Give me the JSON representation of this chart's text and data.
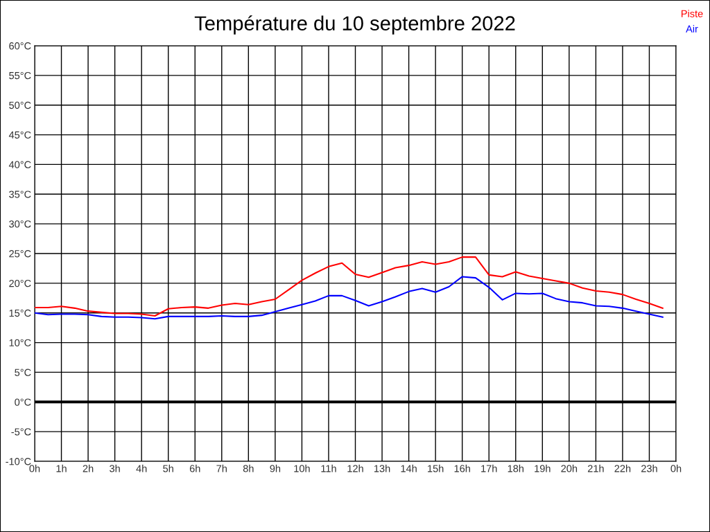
{
  "chart_data": {
    "type": "line",
    "title": "Température du 10 septembre 2022",
    "x": [
      "2022-09-10T00:00",
      "2022-09-10T00:30",
      "2022-09-10T01:00",
      "2022-09-10T01:30",
      "2022-09-10T02:00",
      "2022-09-10T02:30",
      "2022-09-10T03:00",
      "2022-09-10T03:30",
      "2022-09-10T04:00",
      "2022-09-10T04:30",
      "2022-09-10T05:00",
      "2022-09-10T05:30",
      "2022-09-10T06:00",
      "2022-09-10T06:30",
      "2022-09-10T07:00",
      "2022-09-10T07:30",
      "2022-09-10T08:00",
      "2022-09-10T08:30",
      "2022-09-10T09:00",
      "2022-09-10T09:30",
      "2022-09-10T10:00",
      "2022-09-10T10:30",
      "2022-09-10T11:00",
      "2022-09-10T11:30",
      "2022-09-10T12:00",
      "2022-09-10T12:30",
      "2022-09-10T13:00",
      "2022-09-10T13:30",
      "2022-09-10T14:00",
      "2022-09-10T14:30",
      "2022-09-10T15:00",
      "2022-09-10T15:30",
      "2022-09-10T16:00",
      "2022-09-10T16:30",
      "2022-09-10T17:00",
      "2022-09-10T17:30",
      "2022-09-10T18:00",
      "2022-09-10T18:30",
      "2022-09-10T19:00",
      "2022-09-10T19:30",
      "2022-09-10T20:00",
      "2022-09-10T20:30",
      "2022-09-10T21:00",
      "2022-09-10T21:30",
      "2022-09-10T22:00",
      "2022-09-10T22:30",
      "2022-09-10T23:00",
      "2022-09-10T23:30"
    ],
    "series": [
      {
        "name": "Piste",
        "color": "#ff0000",
        "values": [
          15.9,
          15.9,
          16.1,
          15.8,
          15.3,
          15.1,
          14.9,
          14.9,
          14.8,
          14.5,
          15.7,
          15.9,
          16.0,
          15.8,
          16.3,
          16.6,
          16.4,
          16.9,
          17.3,
          18.9,
          20.5,
          21.7,
          22.8,
          23.4,
          21.5,
          21.0,
          21.8,
          22.6,
          23.0,
          23.6,
          23.2,
          23.6,
          24.4,
          24.4,
          21.4,
          21.1,
          21.9,
          21.2,
          20.8,
          20.4,
          20.0,
          19.2,
          18.7,
          18.5,
          18.1,
          17.3,
          16.6,
          15.8
        ]
      },
      {
        "name": "Air",
        "color": "#0000ff",
        "values": [
          15.0,
          14.7,
          14.8,
          14.8,
          14.7,
          14.4,
          14.3,
          14.3,
          14.2,
          14.0,
          14.4,
          14.4,
          14.4,
          14.4,
          14.5,
          14.4,
          14.4,
          14.6,
          15.2,
          15.8,
          16.4,
          17.0,
          17.9,
          17.9,
          17.1,
          16.2,
          16.9,
          17.7,
          18.6,
          19.1,
          18.5,
          19.4,
          21.1,
          20.9,
          19.3,
          17.2,
          18.3,
          18.2,
          18.3,
          17.4,
          16.9,
          16.7,
          16.2,
          16.1,
          15.8,
          15.3,
          14.8,
          14.3
        ]
      }
    ],
    "xlim": [
      "2022-09-10T00:00",
      "2022-09-11T00:00"
    ],
    "xticks": [
      {
        "value": "2022-09-10T00:00",
        "label": "0h"
      },
      {
        "value": "2022-09-10T01:00",
        "label": "1h"
      },
      {
        "value": "2022-09-10T02:00",
        "label": "2h"
      },
      {
        "value": "2022-09-10T03:00",
        "label": "3h"
      },
      {
        "value": "2022-09-10T04:00",
        "label": "4h"
      },
      {
        "value": "2022-09-10T05:00",
        "label": "5h"
      },
      {
        "value": "2022-09-10T06:00",
        "label": "6h"
      },
      {
        "value": "2022-09-10T07:00",
        "label": "7h"
      },
      {
        "value": "2022-09-10T08:00",
        "label": "8h"
      },
      {
        "value": "2022-09-10T09:00",
        "label": "9h"
      },
      {
        "value": "2022-09-10T10:00",
        "label": "10h"
      },
      {
        "value": "2022-09-10T11:00",
        "label": "11h"
      },
      {
        "value": "2022-09-10T12:00",
        "label": "12h"
      },
      {
        "value": "2022-09-10T13:00",
        "label": "13h"
      },
      {
        "value": "2022-09-10T14:00",
        "label": "14h"
      },
      {
        "value": "2022-09-10T15:00",
        "label": "15h"
      },
      {
        "value": "2022-09-10T16:00",
        "label": "16h"
      },
      {
        "value": "2022-09-10T17:00",
        "label": "17h"
      },
      {
        "value": "2022-09-10T18:00",
        "label": "18h"
      },
      {
        "value": "2022-09-10T19:00",
        "label": "19h"
      },
      {
        "value": "2022-09-10T20:00",
        "label": "20h"
      },
      {
        "value": "2022-09-10T21:00",
        "label": "21h"
      },
      {
        "value": "2022-09-10T22:00",
        "label": "22h"
      },
      {
        "value": "2022-09-10T23:00",
        "label": "23h"
      },
      {
        "value": "2022-09-11T00:00",
        "label": "0h"
      }
    ],
    "ylim": [
      -10,
      60
    ],
    "yticks": [
      {
        "value": -10,
        "label": "-10°C"
      },
      {
        "value": -5,
        "label": "-5°C"
      },
      {
        "value": 0,
        "label": "0°C"
      },
      {
        "value": 5,
        "label": "5°C"
      },
      {
        "value": 10,
        "label": "10°C"
      },
      {
        "value": 15,
        "label": "15°C"
      },
      {
        "value": 20,
        "label": "20°C"
      },
      {
        "value": 25,
        "label": "25°C"
      },
      {
        "value": 30,
        "label": "30°C"
      },
      {
        "value": 35,
        "label": "35°C"
      },
      {
        "value": 40,
        "label": "40°C"
      },
      {
        "value": 45,
        "label": "45°C"
      },
      {
        "value": 50,
        "label": "50°C"
      },
      {
        "value": 55,
        "label": "55°C"
      },
      {
        "value": 60,
        "label": "60°C"
      }
    ],
    "ref_lines": [
      {
        "axis": "y",
        "value": 0,
        "label": null,
        "color": "#000000"
      }
    ],
    "grid": true,
    "legend": "top right",
    "marker": "none",
    "line_style": "solid"
  }
}
